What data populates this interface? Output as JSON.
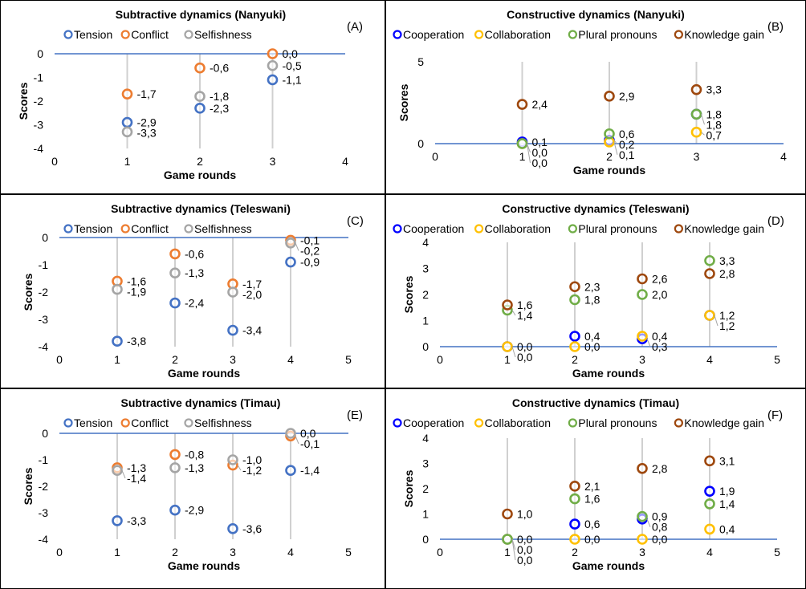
{
  "chart_data": [
    {
      "type": "scatter",
      "title": "Subtractive dynamics (Nanyuki)",
      "panel_label": "(A)",
      "xlabel": "Game rounds",
      "ylabel": "Scores",
      "xlim": [
        0,
        4
      ],
      "ylim": [
        -4,
        0
      ],
      "x_ticks": [
        "0",
        "1",
        "2",
        "3",
        "4"
      ],
      "y_ticks": [
        "0",
        "-1",
        "-2",
        "-3",
        "-4"
      ],
      "legend": "top",
      "series": [
        {
          "name": "Tension",
          "color": "#4472C4",
          "points": [
            {
              "x": 1,
              "y": -2.9,
              "label": "-2,9"
            },
            {
              "x": 2,
              "y": -2.3,
              "label": "-2,3"
            },
            {
              "x": 3,
              "y": -1.1,
              "label": "-1,1"
            }
          ]
        },
        {
          "name": "Conflict",
          "color": "#ED7D31",
          "points": [
            {
              "x": 1,
              "y": -1.7,
              "label": "-1,7"
            },
            {
              "x": 2,
              "y": -0.6,
              "label": "-0,6"
            },
            {
              "x": 3,
              "y": 0.0,
              "label": "0,0"
            }
          ]
        },
        {
          "name": "Selfishness",
          "color": "#A5A5A5",
          "points": [
            {
              "x": 1,
              "y": -3.3,
              "label": "-3,3"
            },
            {
              "x": 2,
              "y": -1.8,
              "label": "-1,8"
            },
            {
              "x": 3,
              "y": -0.5,
              "label": "-0,5"
            }
          ]
        }
      ]
    },
    {
      "type": "scatter",
      "title": "Constructive dynamics (Nanyuki)",
      "panel_label": "(B)",
      "xlabel": "Game rounds",
      "ylabel": "Scores",
      "xlim": [
        0,
        4
      ],
      "ylim": [
        0,
        5
      ],
      "x_ticks": [
        "0",
        "1",
        "2",
        "3",
        "4"
      ],
      "y_ticks": [
        "5",
        "0"
      ],
      "legend": "top",
      "series": [
        {
          "name": "Cooperation",
          "color": "#0000FF",
          "points": [
            {
              "x": 1,
              "y": 0.1,
              "label": "0,1"
            },
            {
              "x": 2,
              "y": 0.2,
              "label": "0,2"
            },
            {
              "x": 3,
              "y": 1.8,
              "label": "1,8"
            }
          ]
        },
        {
          "name": "Collaboration",
          "color": "#FFC000",
          "points": [
            {
              "x": 1,
              "y": 0.0,
              "label": "0,0"
            },
            {
              "x": 2,
              "y": 0.1,
              "label": "0,1"
            },
            {
              "x": 3,
              "y": 0.7,
              "label": "0,7"
            }
          ]
        },
        {
          "name": "Plural pronouns",
          "color": "#70AD47",
          "points": [
            {
              "x": 1,
              "y": 0.0,
              "label": "0,0"
            },
            {
              "x": 2,
              "y": 0.6,
              "label": "0,6"
            },
            {
              "x": 3,
              "y": 1.8,
              "label": "1,8"
            }
          ]
        },
        {
          "name": "Knowledge gain",
          "color": "#9E480E",
          "points": [
            {
              "x": 1,
              "y": 2.4,
              "label": "2,4"
            },
            {
              "x": 2,
              "y": 2.9,
              "label": "2,9"
            },
            {
              "x": 3,
              "y": 3.3,
              "label": "3,3"
            }
          ]
        }
      ]
    },
    {
      "type": "scatter",
      "title": "Subtractive dynamics (Teleswani)",
      "panel_label": "(C)",
      "xlabel": "Game rounds",
      "ylabel": "Scores",
      "xlim": [
        0,
        5
      ],
      "ylim": [
        -4,
        0
      ],
      "x_ticks": [
        "0",
        "1",
        "2",
        "3",
        "4",
        "5"
      ],
      "y_ticks": [
        "0",
        "-1",
        "-2",
        "-3",
        "-4"
      ],
      "legend": "top",
      "series": [
        {
          "name": "Tension",
          "color": "#4472C4",
          "points": [
            {
              "x": 1,
              "y": -3.8,
              "label": "-3,8"
            },
            {
              "x": 2,
              "y": -2.4,
              "label": "-2,4"
            },
            {
              "x": 3,
              "y": -3.4,
              "label": "-3,4"
            },
            {
              "x": 4,
              "y": -0.9,
              "label": "-0,9"
            }
          ]
        },
        {
          "name": "Conflict",
          "color": "#ED7D31",
          "points": [
            {
              "x": 1,
              "y": -1.6,
              "label": "-1,6"
            },
            {
              "x": 2,
              "y": -0.6,
              "label": "-0,6"
            },
            {
              "x": 3,
              "y": -1.7,
              "label": "-1,7"
            },
            {
              "x": 4,
              "y": -0.1,
              "label": "-0,1"
            }
          ]
        },
        {
          "name": "Selfishness",
          "color": "#A5A5A5",
          "points": [
            {
              "x": 1,
              "y": -1.9,
              "label": "-1,9"
            },
            {
              "x": 2,
              "y": -1.3,
              "label": "-1,3"
            },
            {
              "x": 3,
              "y": -2.0,
              "label": "-2,0"
            },
            {
              "x": 4,
              "y": -0.2,
              "label": "-0,2"
            }
          ]
        }
      ]
    },
    {
      "type": "scatter",
      "title": "Constructive dynamics (Teleswani)",
      "panel_label": "(D)",
      "xlabel": "Game rounds",
      "ylabel": "Scores",
      "xlim": [
        0,
        5
      ],
      "ylim": [
        0,
        4
      ],
      "x_ticks": [
        "0",
        "1",
        "2",
        "3",
        "4",
        "5"
      ],
      "y_ticks": [
        "4",
        "3",
        "2",
        "1",
        "0"
      ],
      "legend": "top",
      "series": [
        {
          "name": "Cooperation",
          "color": "#0000FF",
          "points": [
            {
              "x": 1,
              "y": 0.0,
              "label": "0,0"
            },
            {
              "x": 2,
              "y": 0.4,
              "label": "0,4"
            },
            {
              "x": 3,
              "y": 0.3,
              "label": "0,3"
            },
            {
              "x": 4,
              "y": 1.2,
              "label": "1,2"
            }
          ]
        },
        {
          "name": "Collaboration",
          "color": "#FFC000",
          "points": [
            {
              "x": 1,
              "y": 0.0,
              "label": "0,0"
            },
            {
              "x": 2,
              "y": 0.0,
              "label": "0,0"
            },
            {
              "x": 3,
              "y": 0.4,
              "label": "0,4"
            },
            {
              "x": 4,
              "y": 1.2,
              "label": "1,2"
            }
          ]
        },
        {
          "name": "Plural pronouns",
          "color": "#70AD47",
          "points": [
            {
              "x": 1,
              "y": 1.4,
              "label": "1,4"
            },
            {
              "x": 2,
              "y": 1.8,
              "label": "1,8"
            },
            {
              "x": 3,
              "y": 2.0,
              "label": "2,0"
            },
            {
              "x": 4,
              "y": 3.3,
              "label": "3,3"
            }
          ]
        },
        {
          "name": "Knowledge gain",
          "color": "#9E480E",
          "points": [
            {
              "x": 1,
              "y": 1.6,
              "label": "1,6"
            },
            {
              "x": 2,
              "y": 2.3,
              "label": "2,3"
            },
            {
              "x": 3,
              "y": 2.6,
              "label": "2,6"
            },
            {
              "x": 4,
              "y": 2.8,
              "label": "2,8"
            }
          ]
        }
      ]
    },
    {
      "type": "scatter",
      "title": "Subtractive dynamics (Timau)",
      "panel_label": "(E)",
      "xlabel": "Game rounds",
      "ylabel": "Scores",
      "xlim": [
        0,
        5
      ],
      "ylim": [
        -4,
        0
      ],
      "x_ticks": [
        "0",
        "1",
        "2",
        "3",
        "4",
        "5"
      ],
      "y_ticks": [
        "0",
        "-1",
        "-2",
        "-3",
        "-4"
      ],
      "legend": "top",
      "series": [
        {
          "name": "Tension",
          "color": "#4472C4",
          "points": [
            {
              "x": 1,
              "y": -3.3,
              "label": "-3,3"
            },
            {
              "x": 2,
              "y": -2.9,
              "label": "-2,9"
            },
            {
              "x": 3,
              "y": -3.6,
              "label": "-3,6"
            },
            {
              "x": 4,
              "y": -1.4,
              "label": "-1,4"
            }
          ]
        },
        {
          "name": "Conflict",
          "color": "#ED7D31",
          "points": [
            {
              "x": 1,
              "y": -1.3,
              "label": "-1,3"
            },
            {
              "x": 2,
              "y": -0.8,
              "label": "-0,8"
            },
            {
              "x": 3,
              "y": -1.2,
              "label": "-1,2"
            },
            {
              "x": 4,
              "y": -0.1,
              "label": "-0,1"
            }
          ]
        },
        {
          "name": "Selfishness",
          "color": "#A5A5A5",
          "points": [
            {
              "x": 1,
              "y": -1.4,
              "label": "-1,4"
            },
            {
              "x": 2,
              "y": -1.3,
              "label": "-1,3"
            },
            {
              "x": 3,
              "y": -1.0,
              "label": "-1,0"
            },
            {
              "x": 4,
              "y": 0.0,
              "label": "0,0"
            }
          ]
        }
      ]
    },
    {
      "type": "scatter",
      "title": "Constructive dynamics (Timau)",
      "panel_label": "(F)",
      "xlabel": "Game rounds",
      "ylabel": "Scores",
      "xlim": [
        0,
        5
      ],
      "ylim": [
        0,
        4
      ],
      "x_ticks": [
        "0",
        "1",
        "2",
        "3",
        "4",
        "5"
      ],
      "y_ticks": [
        "4",
        "3",
        "2",
        "1",
        "0"
      ],
      "legend": "top",
      "series": [
        {
          "name": "Cooperation",
          "color": "#0000FF",
          "points": [
            {
              "x": 1,
              "y": 0.0,
              "label": "0,0"
            },
            {
              "x": 2,
              "y": 0.6,
              "label": "0,6"
            },
            {
              "x": 3,
              "y": 0.8,
              "label": "0,8"
            },
            {
              "x": 4,
              "y": 1.9,
              "label": "1,9"
            }
          ]
        },
        {
          "name": "Collaboration",
          "color": "#FFC000",
          "points": [
            {
              "x": 1,
              "y": 0.0,
              "label": "0,0"
            },
            {
              "x": 2,
              "y": 0.0,
              "label": "0,0"
            },
            {
              "x": 3,
              "y": 0.0,
              "label": "0,0"
            },
            {
              "x": 4,
              "y": 0.4,
              "label": "0,4"
            }
          ]
        },
        {
          "name": "Plural pronouns",
          "color": "#70AD47",
          "points": [
            {
              "x": 1,
              "y": 0.0,
              "label": "0,0"
            },
            {
              "x": 2,
              "y": 1.6,
              "label": "1,6"
            },
            {
              "x": 3,
              "y": 0.9,
              "label": "0,9"
            },
            {
              "x": 4,
              "y": 1.4,
              "label": "1,4"
            }
          ]
        },
        {
          "name": "Knowledge gain",
          "color": "#9E480E",
          "points": [
            {
              "x": 1,
              "y": 1.0,
              "label": "1,0"
            },
            {
              "x": 2,
              "y": 2.1,
              "label": "2,1"
            },
            {
              "x": 3,
              "y": 2.8,
              "label": "2,8"
            },
            {
              "x": 4,
              "y": 3.1,
              "label": "3,1"
            }
          ]
        }
      ]
    }
  ]
}
